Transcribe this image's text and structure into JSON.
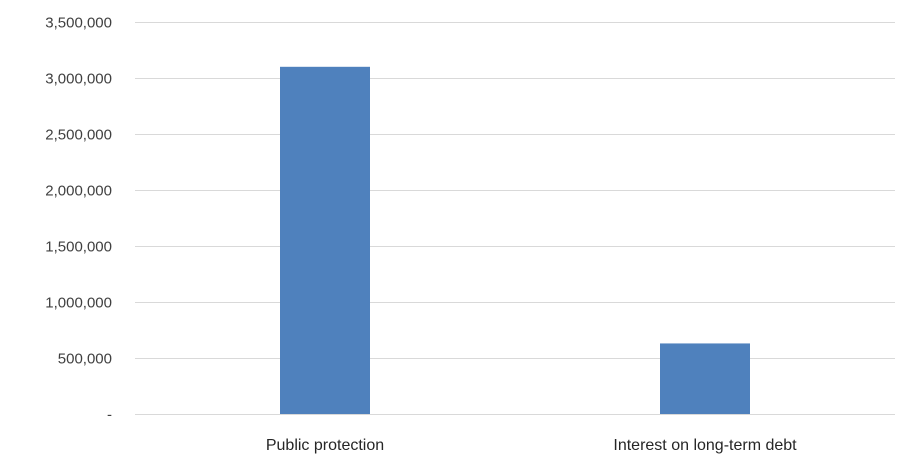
{
  "chart_data": {
    "type": "bar",
    "title": "",
    "xlabel": "",
    "ylabel": "",
    "categories": [
      "Public protection",
      "Interest on long-term debt"
    ],
    "values": [
      3100000,
      630000
    ],
    "ylim": [
      0,
      3500000
    ],
    "yticks": [
      0,
      500000,
      1000000,
      1500000,
      2000000,
      2500000,
      3000000,
      3500000
    ],
    "ytick_labels": [
      "-",
      "500,000",
      "1,000,000",
      "1,500,000",
      "2,000,000",
      "2,500,000",
      "3,000,000",
      "3,500,000"
    ],
    "grid": true,
    "legend": "none",
    "bar_color": "#4f81bd",
    "grid_color": "#d9d9d9"
  }
}
